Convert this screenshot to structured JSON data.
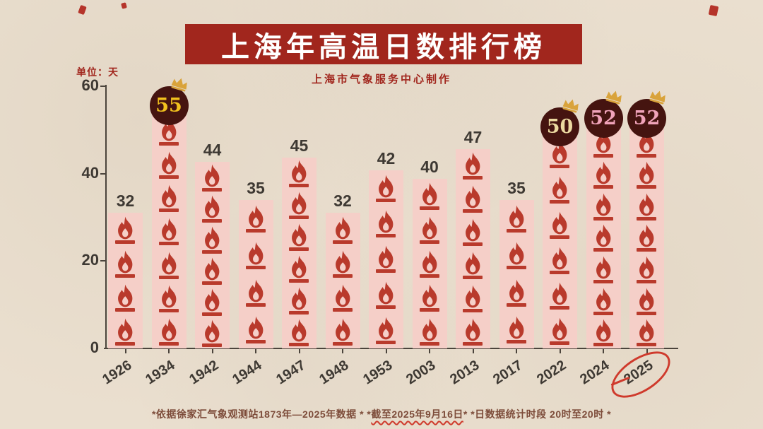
{
  "header": {
    "title": "上海年高温日数排行榜",
    "subtitle": "上海市气象服务中心制作",
    "unit_label": "单位：天"
  },
  "chart_data": {
    "type": "bar",
    "title": "上海年高温日数排行榜",
    "ylabel": "天",
    "ylim": [
      0,
      60
    ],
    "yticks": [
      60,
      40,
      20,
      0
    ],
    "grid": false,
    "legend": "none",
    "categories": [
      "1926",
      "1934",
      "1942",
      "1944",
      "1947",
      "1948",
      "1953",
      "2003",
      "2013",
      "2017",
      "2022",
      "2024",
      "2025"
    ],
    "values": [
      32,
      55,
      44,
      35,
      45,
      32,
      42,
      40,
      47,
      35,
      50,
      52,
      52
    ],
    "bars": [
      {
        "year": "1926",
        "value": 32,
        "flames": 4,
        "crowned": false
      },
      {
        "year": "1934",
        "value": 55,
        "flames": 7,
        "crowned": true,
        "badge_text_color": "#f2c21e"
      },
      {
        "year": "1942",
        "value": 44,
        "flames": 6,
        "crowned": false
      },
      {
        "year": "1944",
        "value": 35,
        "flames": 4,
        "crowned": false
      },
      {
        "year": "1947",
        "value": 45,
        "flames": 6,
        "crowned": false
      },
      {
        "year": "1948",
        "value": 32,
        "flames": 4,
        "crowned": false
      },
      {
        "year": "1953",
        "value": 42,
        "flames": 5,
        "crowned": false
      },
      {
        "year": "2003",
        "value": 40,
        "flames": 5,
        "crowned": false
      },
      {
        "year": "2013",
        "value": 47,
        "flames": 6,
        "crowned": false
      },
      {
        "year": "2017",
        "value": 35,
        "flames": 4,
        "crowned": false
      },
      {
        "year": "2022",
        "value": 50,
        "flames": 6,
        "crowned": true,
        "badge_text_color": "#ecd9a0"
      },
      {
        "year": "2024",
        "value": 52,
        "flames": 7,
        "crowned": true,
        "badge_text_color": "#f0a3ba"
      },
      {
        "year": "2025",
        "value": 52,
        "flames": 7,
        "crowned": true,
        "badge_text_color": "#f0a3ba",
        "circled": true
      }
    ]
  },
  "footer": {
    "note1": "*依据徐家汇气象观测站1873年—2025年数据 *",
    "note2_prefix": "  *",
    "note2_underlined": "截至2025年9月16日",
    "note2_suffix": "*",
    "note3": "  *日数据统计时段 20时至20时 *"
  },
  "colors": {
    "paper_bg": "#eadfcf",
    "banner_bg": "#a1261d",
    "banner_text": "#ffffff",
    "accent_red": "#a1261d",
    "bar_fill": "#f5cfc8",
    "flame_red": "#b93a2c",
    "badge_bg": "#451410",
    "crown_gold": "#d9a33b",
    "label_dark": "#3e3933",
    "axis_dark": "#4b443c",
    "footer_brown": "#7d4c3a",
    "circle_red": "#cf3a2c"
  }
}
